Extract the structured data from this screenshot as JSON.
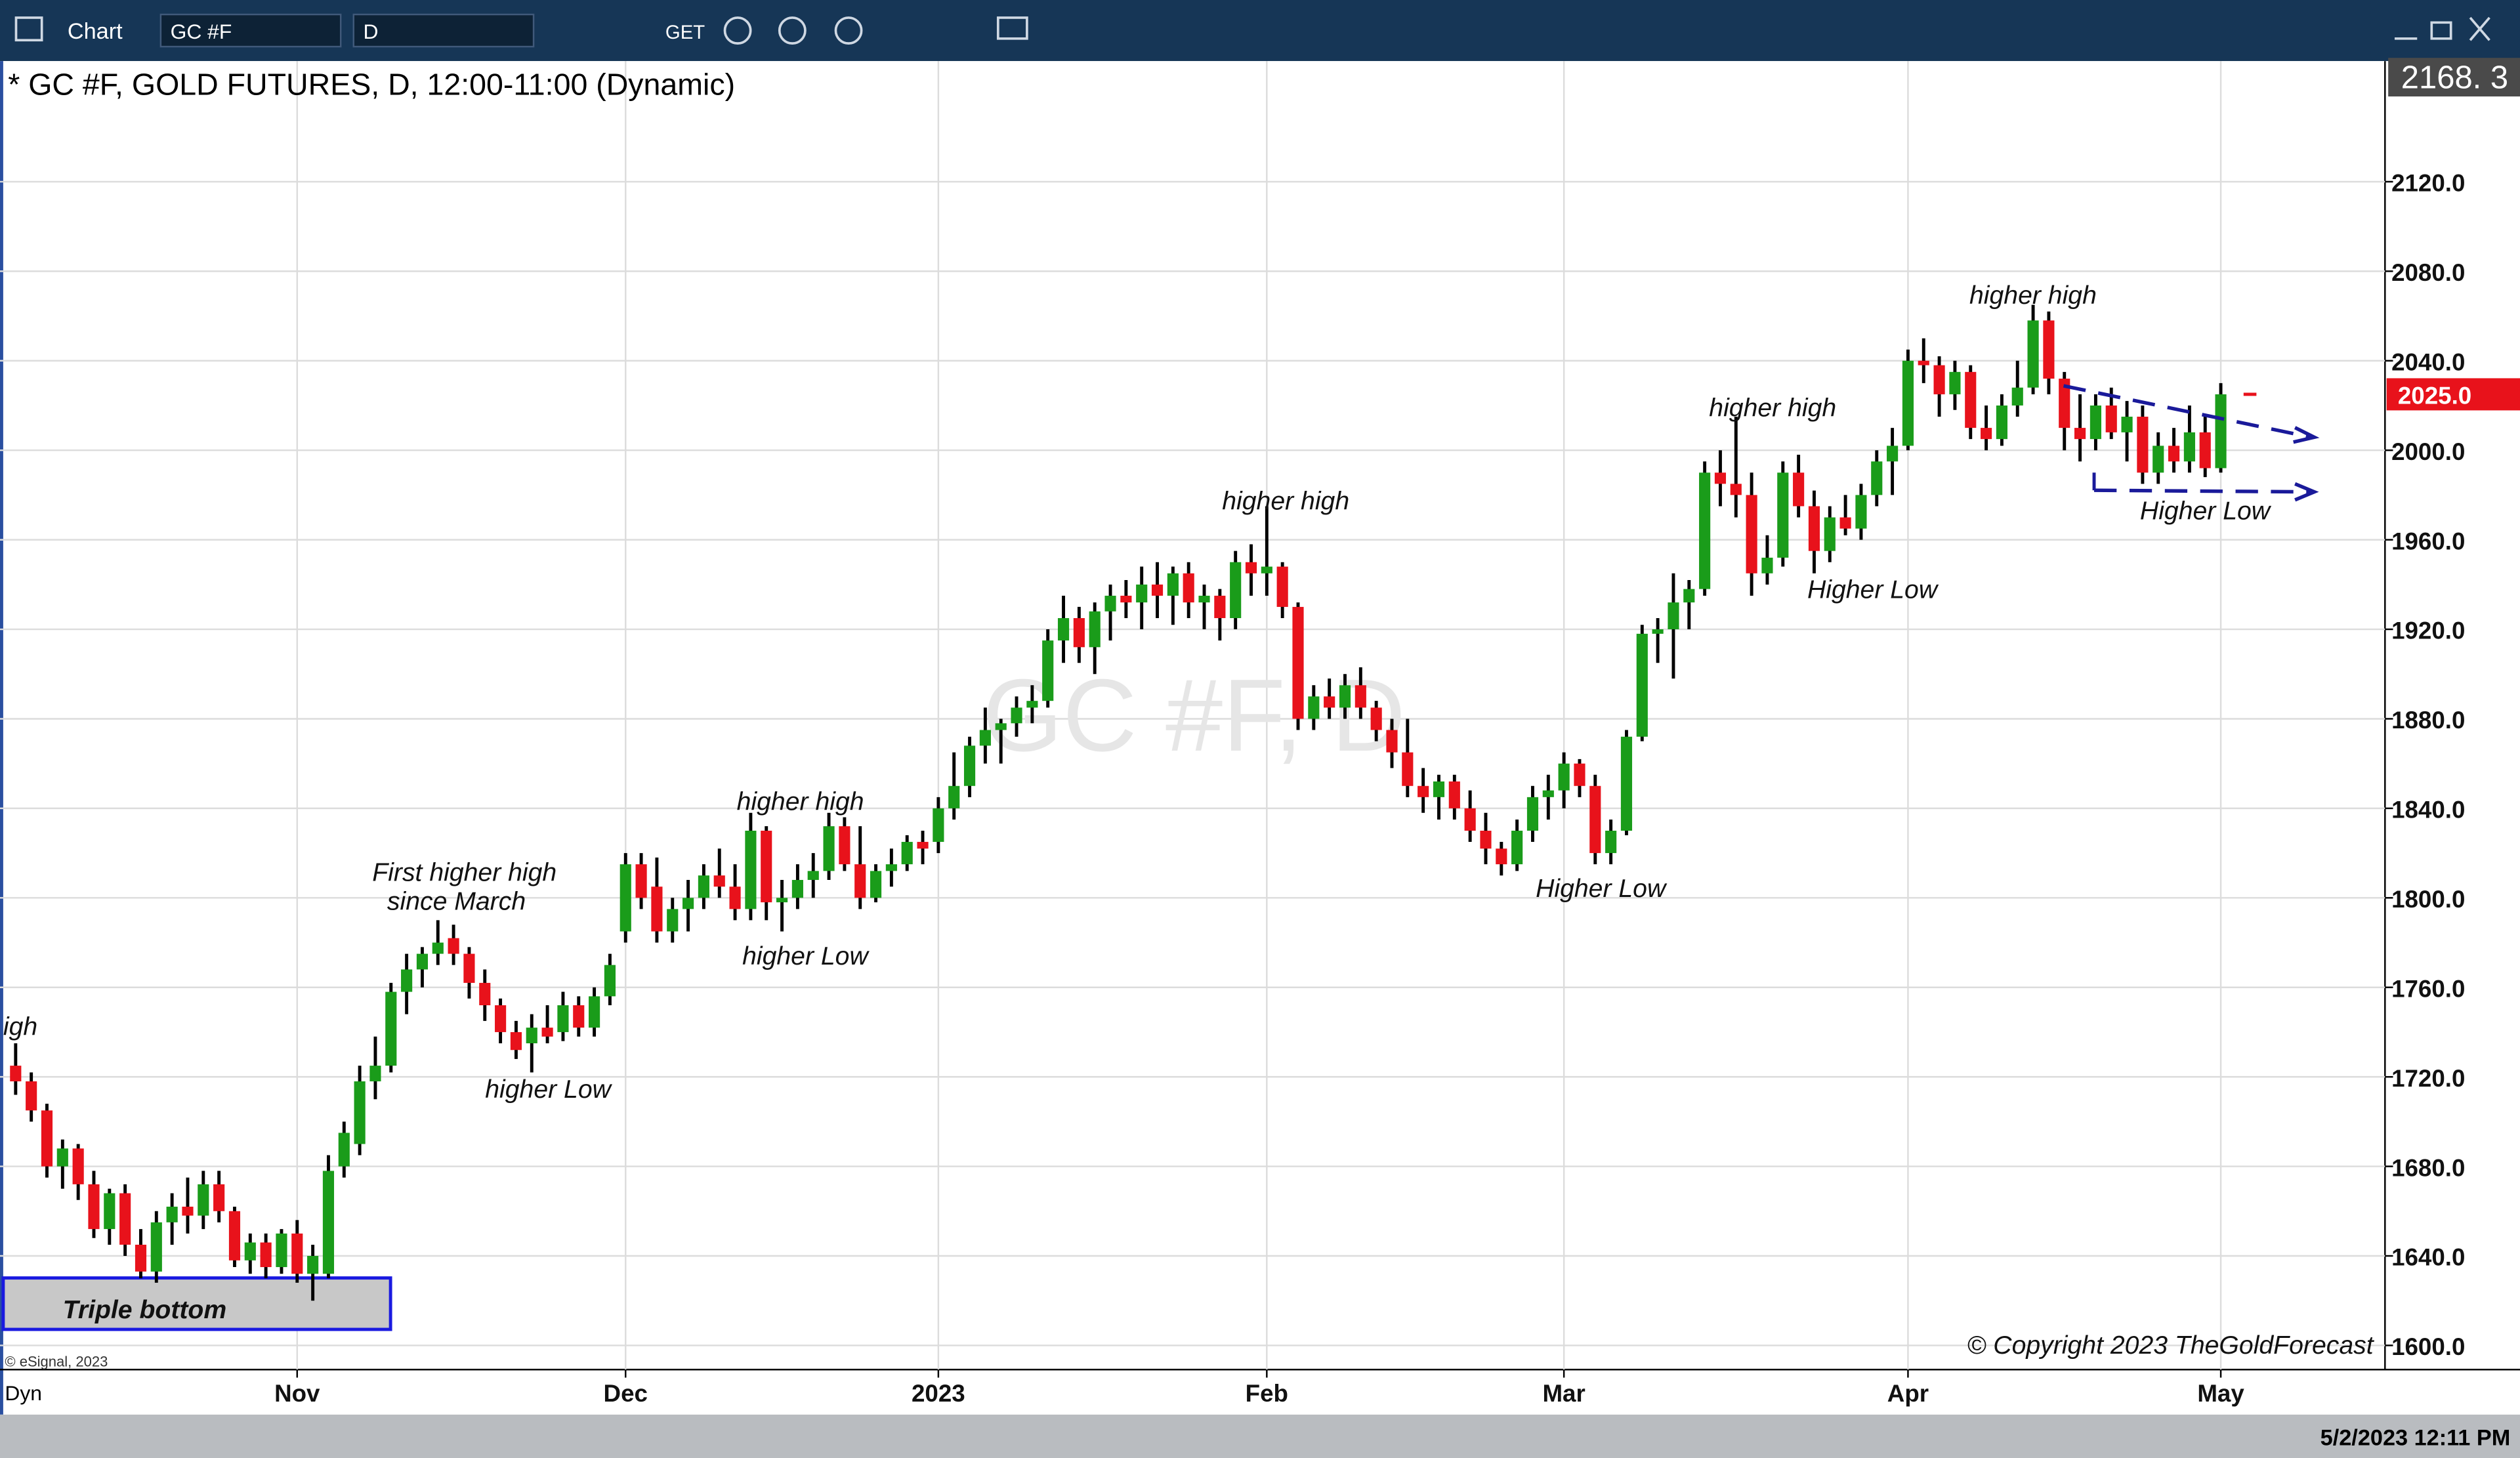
{
  "toolbar": {
    "app": "Chart",
    "symbol": "GC #F",
    "interval": "D",
    "get": "GET"
  },
  "chart_data": {
    "type": "candlestick",
    "title": "* GC #F, GOLD FUTURES, D, 12:00-11:00 (Dynamic)",
    "watermark": "GC #F, D",
    "up_color": "#1a9c1a",
    "down_color": "#e8121b",
    "grid": true,
    "xlim": [
      -1,
      151.5
    ],
    "xticks": [
      {
        "value": 18,
        "label": "Nov"
      },
      {
        "value": 39,
        "label": "Dec"
      },
      {
        "value": 59,
        "label": "2023"
      },
      {
        "value": 80,
        "label": "Feb"
      },
      {
        "value": 99,
        "label": "Mar"
      },
      {
        "value": 121,
        "label": "Apr"
      },
      {
        "value": 141,
        "label": "May"
      }
    ],
    "ylim": [
      1589.2,
      2173.9
    ],
    "yticks": [
      {
        "value": 1600,
        "label": "1600.0"
      },
      {
        "value": 1640,
        "label": "1640.0"
      },
      {
        "value": 1680,
        "label": "1680.0"
      },
      {
        "value": 1720,
        "label": "1720.0"
      },
      {
        "value": 1760,
        "label": "1760.0"
      },
      {
        "value": 1800,
        "label": "1800.0"
      },
      {
        "value": 1840,
        "label": "1840.0"
      },
      {
        "value": 1880,
        "label": "1880.0"
      },
      {
        "value": 1920,
        "label": "1920.0"
      },
      {
        "value": 1960,
        "label": "1960.0"
      },
      {
        "value": 2000,
        "label": "2000.0"
      },
      {
        "value": 2040,
        "label": "2040.0"
      },
      {
        "value": 2080,
        "label": "2080.0"
      },
      {
        "value": 2120,
        "label": "2120.0"
      }
    ],
    "scale_top_label": "2168. 3",
    "last_price": {
      "value": 2025,
      "label": "2025.0"
    },
    "candles": [
      [
        1725,
        1735,
        1712,
        1718
      ],
      [
        1718,
        1722,
        1700,
        1705
      ],
      [
        1705,
        1708,
        1675,
        1680
      ],
      [
        1680,
        1692,
        1670,
        1688
      ],
      [
        1688,
        1690,
        1665,
        1672
      ],
      [
        1672,
        1678,
        1648,
        1652
      ],
      [
        1652,
        1670,
        1645,
        1668
      ],
      [
        1668,
        1672,
        1640,
        1645
      ],
      [
        1645,
        1652,
        1630,
        1633
      ],
      [
        1633,
        1660,
        1628,
        1655
      ],
      [
        1655,
        1668,
        1645,
        1662
      ],
      [
        1662,
        1675,
        1650,
        1658
      ],
      [
        1658,
        1678,
        1652,
        1672
      ],
      [
        1672,
        1678,
        1655,
        1660
      ],
      [
        1660,
        1662,
        1635,
        1638
      ],
      [
        1638,
        1650,
        1632,
        1646
      ],
      [
        1646,
        1650,
        1630,
        1635
      ],
      [
        1635,
        1652,
        1632,
        1650
      ],
      [
        1650,
        1656,
        1628,
        1632
      ],
      [
        1632,
        1645,
        1620,
        1640
      ],
      [
        1632,
        1685,
        1630,
        1678
      ],
      [
        1680,
        1700,
        1675,
        1695
      ],
      [
        1690,
        1725,
        1685,
        1718
      ],
      [
        1718,
        1738,
        1710,
        1725
      ],
      [
        1725,
        1762,
        1722,
        1758
      ],
      [
        1758,
        1775,
        1748,
        1768
      ],
      [
        1768,
        1778,
        1760,
        1775
      ],
      [
        1775,
        1790,
        1770,
        1780
      ],
      [
        1782,
        1788,
        1770,
        1775
      ],
      [
        1775,
        1778,
        1755,
        1762
      ],
      [
        1762,
        1768,
        1745,
        1752
      ],
      [
        1752,
        1755,
        1735,
        1740
      ],
      [
        1740,
        1745,
        1728,
        1732
      ],
      [
        1735,
        1748,
        1722,
        1742
      ],
      [
        1742,
        1752,
        1735,
        1738
      ],
      [
        1740,
        1758,
        1736,
        1752
      ],
      [
        1752,
        1756,
        1738,
        1742
      ],
      [
        1742,
        1760,
        1738,
        1756
      ],
      [
        1756,
        1775,
        1752,
        1770
      ],
      [
        1785,
        1820,
        1780,
        1815
      ],
      [
        1815,
        1820,
        1795,
        1800
      ],
      [
        1805,
        1818,
        1780,
        1785
      ],
      [
        1785,
        1800,
        1780,
        1795
      ],
      [
        1795,
        1808,
        1785,
        1800
      ],
      [
        1800,
        1815,
        1795,
        1810
      ],
      [
        1810,
        1822,
        1800,
        1805
      ],
      [
        1805,
        1815,
        1790,
        1795
      ],
      [
        1795,
        1838,
        1790,
        1830
      ],
      [
        1830,
        1832,
        1790,
        1798
      ],
      [
        1798,
        1808,
        1785,
        1800
      ],
      [
        1800,
        1815,
        1795,
        1808
      ],
      [
        1808,
        1820,
        1800,
        1812
      ],
      [
        1812,
        1838,
        1808,
        1832
      ],
      [
        1832,
        1836,
        1812,
        1815
      ],
      [
        1815,
        1832,
        1795,
        1800
      ],
      [
        1800,
        1815,
        1798,
        1812
      ],
      [
        1812,
        1822,
        1805,
        1815
      ],
      [
        1815,
        1828,
        1812,
        1825
      ],
      [
        1825,
        1830,
        1815,
        1822
      ],
      [
        1825,
        1845,
        1820,
        1840
      ],
      [
        1840,
        1865,
        1835,
        1850
      ],
      [
        1850,
        1872,
        1845,
        1868
      ],
      [
        1868,
        1885,
        1860,
        1875
      ],
      [
        1875,
        1880,
        1860,
        1878
      ],
      [
        1878,
        1890,
        1872,
        1885
      ],
      [
        1885,
        1895,
        1878,
        1888
      ],
      [
        1888,
        1920,
        1885,
        1915
      ],
      [
        1915,
        1935,
        1905,
        1925
      ],
      [
        1925,
        1930,
        1905,
        1912
      ],
      [
        1912,
        1932,
        1900,
        1928
      ],
      [
        1928,
        1940,
        1915,
        1935
      ],
      [
        1935,
        1942,
        1925,
        1932
      ],
      [
        1932,
        1948,
        1920,
        1940
      ],
      [
        1940,
        1950,
        1925,
        1935
      ],
      [
        1935,
        1948,
        1922,
        1945
      ],
      [
        1945,
        1950,
        1925,
        1932
      ],
      [
        1932,
        1940,
        1920,
        1935
      ],
      [
        1935,
        1938,
        1915,
        1925
      ],
      [
        1925,
        1955,
        1920,
        1950
      ],
      [
        1950,
        1958,
        1935,
        1945
      ],
      [
        1945,
        1975,
        1935,
        1948
      ],
      [
        1948,
        1950,
        1925,
        1930
      ],
      [
        1930,
        1932,
        1875,
        1880
      ],
      [
        1880,
        1895,
        1875,
        1890
      ],
      [
        1890,
        1898,
        1880,
        1885
      ],
      [
        1885,
        1900,
        1880,
        1895
      ],
      [
        1895,
        1903,
        1880,
        1885
      ],
      [
        1885,
        1888,
        1870,
        1875
      ],
      [
        1875,
        1880,
        1858,
        1865
      ],
      [
        1865,
        1880,
        1845,
        1850
      ],
      [
        1850,
        1858,
        1838,
        1845
      ],
      [
        1845,
        1855,
        1835,
        1852
      ],
      [
        1852,
        1855,
        1835,
        1840
      ],
      [
        1840,
        1848,
        1825,
        1830
      ],
      [
        1830,
        1838,
        1815,
        1822
      ],
      [
        1822,
        1825,
        1810,
        1815
      ],
      [
        1815,
        1835,
        1812,
        1830
      ],
      [
        1830,
        1850,
        1825,
        1845
      ],
      [
        1845,
        1855,
        1835,
        1848
      ],
      [
        1848,
        1865,
        1840,
        1860
      ],
      [
        1860,
        1862,
        1845,
        1850
      ],
      [
        1850,
        1855,
        1815,
        1820
      ],
      [
        1820,
        1835,
        1815,
        1830
      ],
      [
        1830,
        1875,
        1828,
        1872
      ],
      [
        1872,
        1922,
        1870,
        1918
      ],
      [
        1918,
        1925,
        1905,
        1920
      ],
      [
        1920,
        1945,
        1898,
        1932
      ],
      [
        1932,
        1942,
        1920,
        1938
      ],
      [
        1938,
        1995,
        1935,
        1990
      ],
      [
        1990,
        2000,
        1975,
        1985
      ],
      [
        1985,
        2015,
        1970,
        1980
      ],
      [
        1980,
        1990,
        1935,
        1945
      ],
      [
        1945,
        1962,
        1940,
        1952
      ],
      [
        1952,
        1995,
        1948,
        1990
      ],
      [
        1990,
        1998,
        1970,
        1975
      ],
      [
        1975,
        1982,
        1945,
        1955
      ],
      [
        1955,
        1975,
        1950,
        1970
      ],
      [
        1970,
        1980,
        1962,
        1965
      ],
      [
        1965,
        1985,
        1960,
        1980
      ],
      [
        1980,
        2000,
        1975,
        1995
      ],
      [
        1995,
        2010,
        1980,
        2002
      ],
      [
        2002,
        2045,
        2000,
        2040
      ],
      [
        2040,
        2050,
        2030,
        2038
      ],
      [
        2038,
        2042,
        2015,
        2025
      ],
      [
        2025,
        2040,
        2018,
        2035
      ],
      [
        2035,
        2038,
        2005,
        2010
      ],
      [
        2010,
        2020,
        2000,
        2005
      ],
      [
        2005,
        2025,
        2002,
        2020
      ],
      [
        2020,
        2040,
        2015,
        2028
      ],
      [
        2028,
        2065,
        2025,
        2058
      ],
      [
        2058,
        2062,
        2025,
        2032
      ],
      [
        2032,
        2035,
        2000,
        2010
      ],
      [
        2010,
        2025,
        1995,
        2005
      ],
      [
        2005,
        2025,
        2000,
        2020
      ],
      [
        2020,
        2028,
        2005,
        2008
      ],
      [
        2008,
        2022,
        1995,
        2015
      ],
      [
        2015,
        2020,
        1985,
        1990
      ],
      [
        1990,
        2008,
        1985,
        2002
      ],
      [
        2002,
        2010,
        1990,
        1995
      ],
      [
        1995,
        2020,
        1990,
        2008
      ],
      [
        2008,
        2015,
        1988,
        1992
      ],
      [
        1992,
        2030,
        1990,
        2025
      ]
    ],
    "annotations": [
      "igh",
      "Triple bottom",
      "First higher high",
      "since March",
      "higher Low",
      "higher high",
      "higher Low",
      "higher high",
      "Higher Low",
      "higher high",
      "Higher Low",
      "higher high",
      "Higher Low"
    ]
  },
  "footer": {
    "source": "© eSignal, 2023",
    "mode": "Dyn",
    "copyright": "© Copyright 2023  TheGoldForecast",
    "timestamp": "5/2/2023 12:11 PM"
  }
}
